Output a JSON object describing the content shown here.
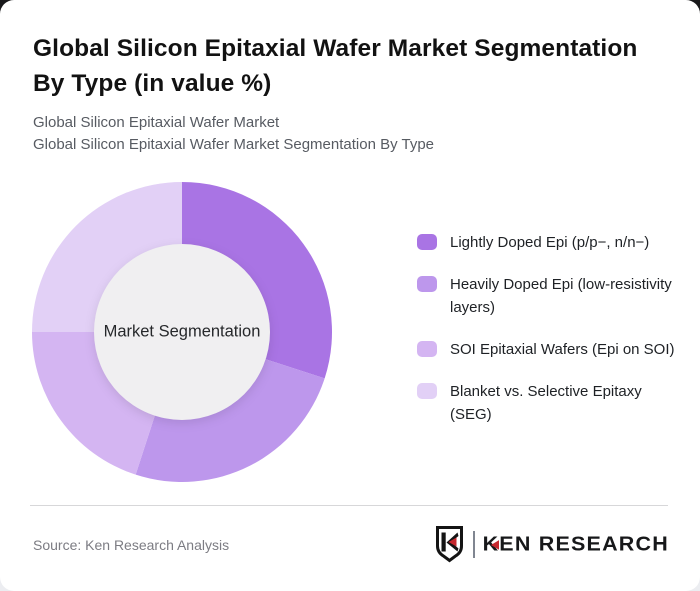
{
  "header": {
    "title": "Global Silicon Epitaxial Wafer Market Segmentation By Type (in value %)",
    "subtitle_line1": "Global Silicon Epitaxial Wafer Market",
    "subtitle_line2": "Global Silicon Epitaxial Wafer Market Segmentation By Type"
  },
  "chart_data": {
    "type": "pie",
    "variant": "donut",
    "title": "Global Silicon Epitaxial Wafer Market Segmentation By Type (in value %)",
    "center_label": "Market Segmentation",
    "unit": "value %",
    "start_angle_deg": 0,
    "direction": "clockwise",
    "categories": [
      "Lightly Doped Epi (p/p−, n/n−)",
      "Heavily Doped Epi (low-resistivity layers)",
      "SOI Epitaxial Wafers (Epi on SOI)",
      "Blanket vs. Selective Epitaxy (SEG)"
    ],
    "values": [
      30,
      25,
      20,
      25
    ],
    "colors": [
      "#a974e4",
      "#bd97ec",
      "#d4b5f2",
      "#e2d0f6"
    ],
    "inner_circle_color": "#f0eff1",
    "legend_position": "right",
    "grid": false
  },
  "footer": {
    "source": "Source: Ken Research Analysis",
    "logo_k": "K",
    "logo_rest": "EN RESEARCH",
    "logo_red": "#c5282e"
  }
}
